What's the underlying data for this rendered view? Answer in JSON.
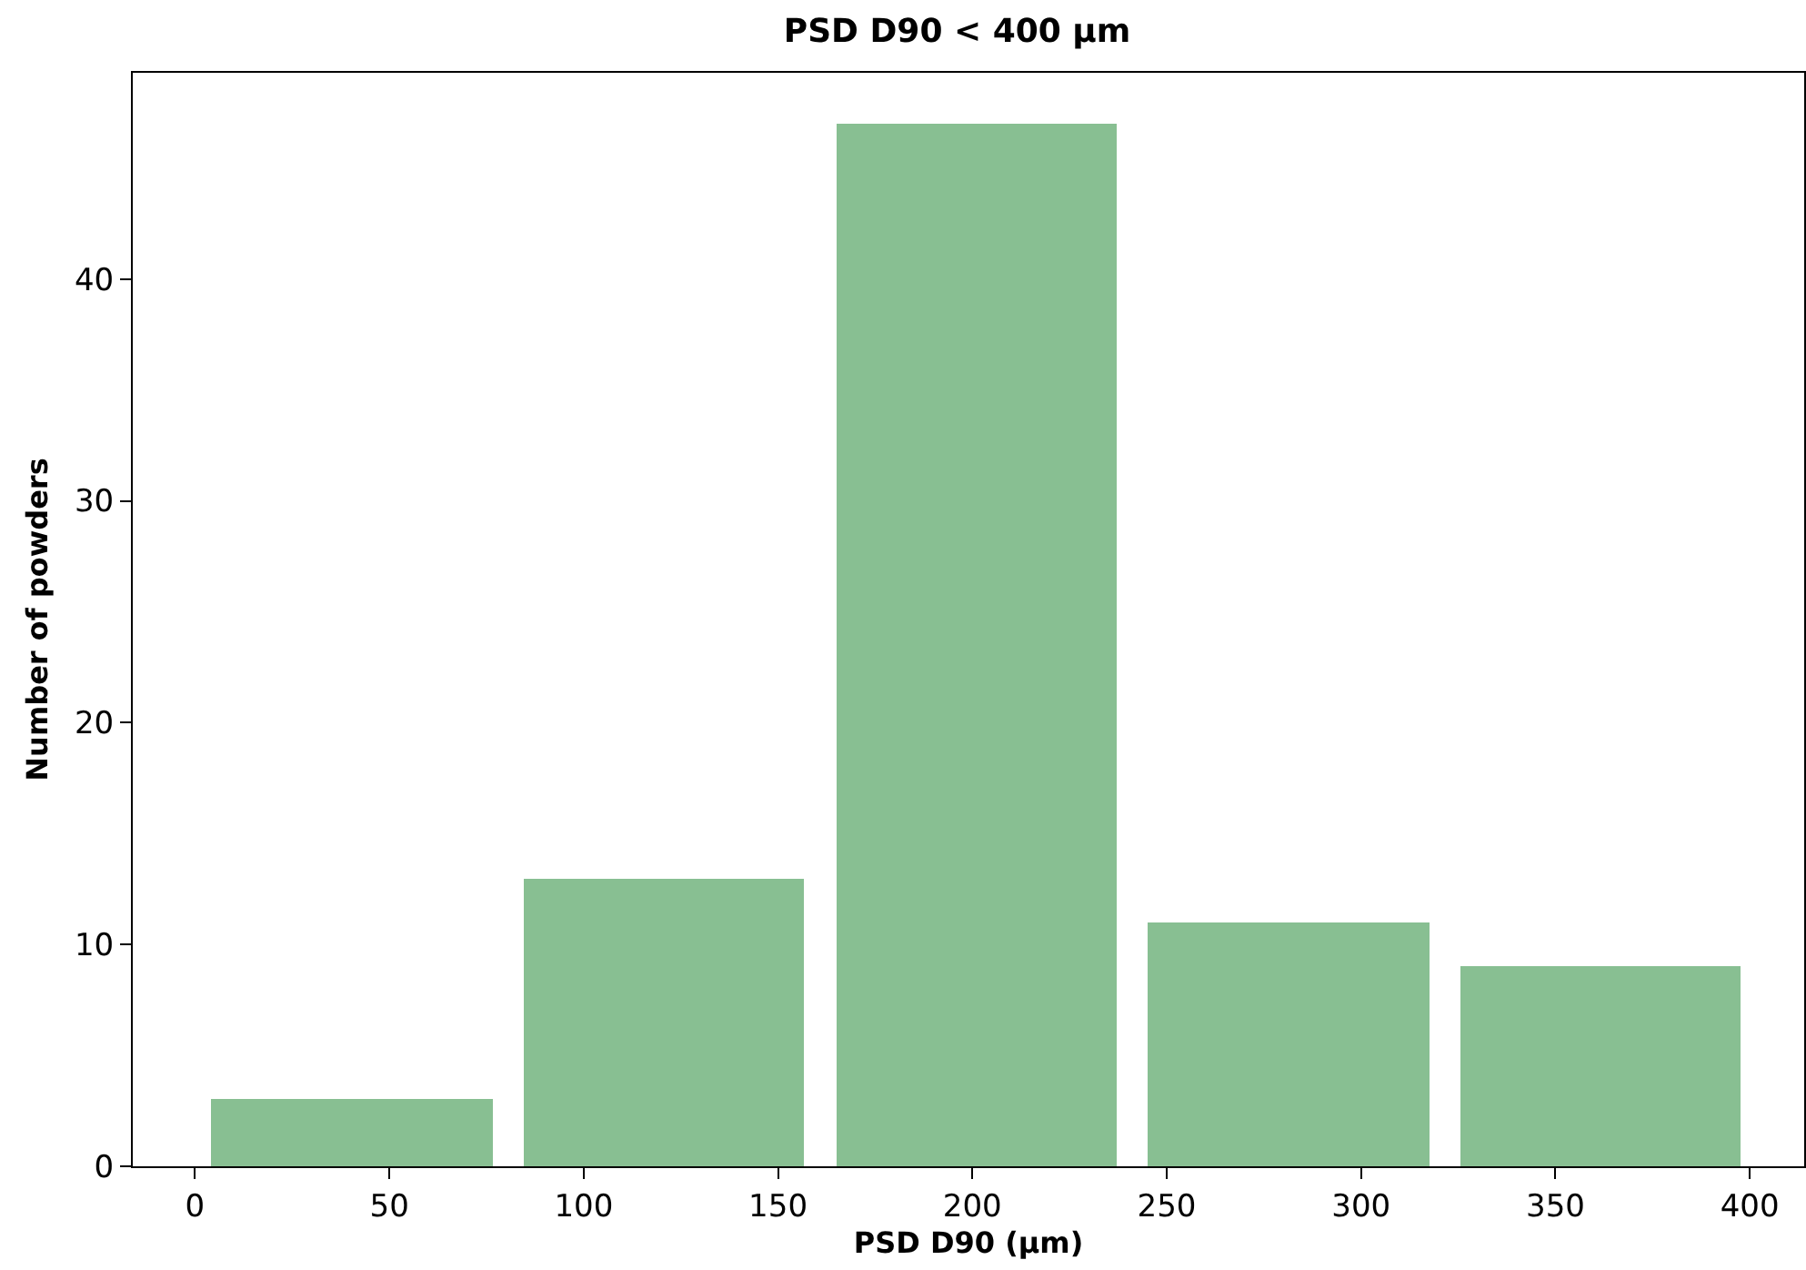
{
  "chart_data": {
    "type": "histogram",
    "title": "PSD D90 < 400 µm",
    "xlabel": "PSD D90 (µm)",
    "ylabel": "Number of powders",
    "bins": [
      0.3,
      80.6,
      160.9,
      241.2,
      321.5,
      401.8
    ],
    "values": [
      3,
      13,
      47,
      11,
      9
    ],
    "color": "#88bf92",
    "xlim": [
      -16,
      414
    ],
    "xticks": [
      0,
      50,
      100,
      150,
      200,
      250,
      300,
      350,
      400
    ],
    "ylim": [
      0,
      49.3
    ],
    "yticks": [
      0,
      10,
      20,
      30,
      40
    ]
  }
}
